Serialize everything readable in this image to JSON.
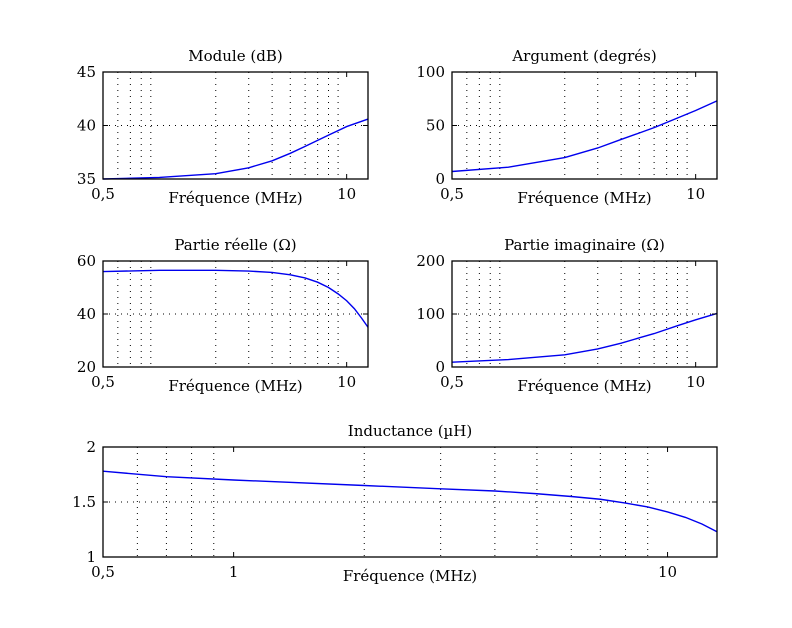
{
  "chart_data": [
    {
      "id": "module",
      "type": "line",
      "title": "Module (dB)",
      "xlabel": "Fréquence (MHz)",
      "xscale": "log",
      "xlim": [
        0.5,
        13
      ],
      "ylim": [
        35,
        45
      ],
      "xticks": [
        0.5,
        10
      ],
      "xtick_labels": [
        "0,5",
        "10"
      ],
      "yticks": [
        35,
        40,
        45
      ],
      "ytick_labels": [
        "35",
        "40",
        "45"
      ],
      "x_grid": [
        0.6,
        0.7,
        0.8,
        0.9,
        2,
        3,
        4,
        5,
        6,
        7,
        8,
        9
      ],
      "y_grid": [
        40
      ],
      "series": [
        {
          "name": "Module",
          "x": [
            0.5,
            1,
            2,
            3,
            4,
            5,
            6,
            8,
            10,
            13
          ],
          "y": [
            35.0,
            35.15,
            35.5,
            36.05,
            36.7,
            37.4,
            38.05,
            39.1,
            39.9,
            40.6
          ]
        }
      ]
    },
    {
      "id": "argument",
      "type": "line",
      "title": "Argument (degrés)",
      "xlabel": "Fréquence (MHz)",
      "xscale": "log",
      "xlim": [
        0.5,
        13
      ],
      "ylim": [
        0,
        100
      ],
      "xticks": [
        0.5,
        10
      ],
      "xtick_labels": [
        "0,5",
        "10"
      ],
      "yticks": [
        0,
        50,
        100
      ],
      "ytick_labels": [
        "0",
        "50",
        "100"
      ],
      "x_grid": [
        0.6,
        0.7,
        0.8,
        0.9,
        2,
        3,
        4,
        5,
        6,
        7,
        8,
        9
      ],
      "y_grid": [
        50
      ],
      "series": [
        {
          "name": "Argument",
          "x": [
            0.5,
            1,
            2,
            3,
            4,
            5,
            6,
            8,
            10,
            13
          ],
          "y": [
            7,
            11,
            20,
            29,
            37,
            43,
            48,
            57,
            64,
            73
          ]
        }
      ]
    },
    {
      "id": "partie-reelle",
      "type": "line",
      "title": "Partie réelle (Ω)",
      "xlabel": "Fréquence (MHz)",
      "xscale": "log",
      "xlim": [
        0.5,
        13
      ],
      "ylim": [
        20,
        60
      ],
      "xticks": [
        0.5,
        10
      ],
      "xtick_labels": [
        "0,5",
        "10"
      ],
      "yticks": [
        20,
        40,
        60
      ],
      "ytick_labels": [
        "20",
        "40",
        "60"
      ],
      "x_grid": [
        0.6,
        0.7,
        0.8,
        0.9,
        2,
        3,
        4,
        5,
        6,
        7,
        8,
        9
      ],
      "y_grid": [
        40
      ],
      "series": [
        {
          "name": "Partie réelle",
          "x": [
            0.5,
            1,
            2,
            3,
            4,
            5,
            6,
            7,
            8,
            9,
            10,
            11,
            12,
            13
          ],
          "y": [
            56,
            56.5,
            56.5,
            56.2,
            55.7,
            54.8,
            53.6,
            52,
            50,
            47.6,
            45,
            42,
            38.5,
            35
          ]
        }
      ]
    },
    {
      "id": "partie-imaginaire",
      "type": "line",
      "title": "Partie imaginaire (Ω)",
      "xlabel": "Fréquence (MHz)",
      "xscale": "log",
      "xlim": [
        0.5,
        13
      ],
      "ylim": [
        0,
        200
      ],
      "xticks": [
        0.5,
        10
      ],
      "xtick_labels": [
        "0,5",
        "10"
      ],
      "yticks": [
        0,
        100,
        200
      ],
      "ytick_labels": [
        "0",
        "100",
        "200"
      ],
      "x_grid": [
        0.6,
        0.7,
        0.8,
        0.9,
        2,
        3,
        4,
        5,
        6,
        7,
        8,
        9
      ],
      "y_grid": [
        100
      ],
      "series": [
        {
          "name": "Partie imaginaire",
          "x": [
            0.5,
            1,
            2,
            3,
            4,
            5,
            6,
            8,
            10,
            13
          ],
          "y": [
            9,
            14,
            23,
            34,
            45,
            55,
            63,
            78,
            89,
            101
          ]
        }
      ]
    },
    {
      "id": "inductance",
      "type": "line",
      "title": "Inductance (µH)",
      "xlabel": "Fréquence (MHz)",
      "xscale": "log",
      "xlim": [
        0.5,
        13
      ],
      "ylim": [
        1,
        2
      ],
      "xticks": [
        0.5,
        1,
        10
      ],
      "xtick_labels": [
        "0,5",
        "1",
        "10"
      ],
      "yticks": [
        1,
        1.5,
        2
      ],
      "ytick_labels": [
        "1",
        "1.5",
        "2"
      ],
      "x_grid": [
        0.6,
        0.7,
        0.8,
        0.9,
        2,
        3,
        4,
        5,
        6,
        7,
        8,
        9
      ],
      "y_grid": [
        1.5
      ],
      "series": [
        {
          "name": "Inductance",
          "x": [
            0.5,
            0.7,
            1,
            2,
            3,
            4,
            5,
            6,
            7,
            8,
            9,
            10,
            11,
            12,
            13
          ],
          "y": [
            1.78,
            1.73,
            1.7,
            1.65,
            1.62,
            1.6,
            1.575,
            1.55,
            1.525,
            1.49,
            1.455,
            1.41,
            1.36,
            1.3,
            1.23
          ]
        }
      ]
    }
  ]
}
